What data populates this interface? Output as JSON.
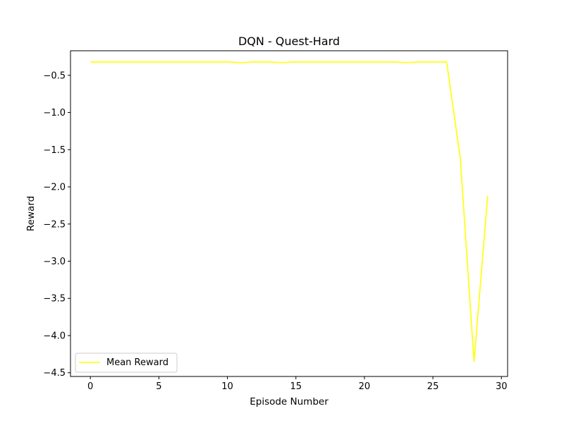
{
  "chart_data": {
    "type": "line",
    "title": "DQN - Quest-Hard",
    "xlabel": "Episode Number",
    "ylabel": "Reward",
    "xlim": [
      -1.45,
      30.45
    ],
    "ylim": [
      -4.55,
      -0.17
    ],
    "xticks": [
      0,
      5,
      10,
      15,
      20,
      25,
      30
    ],
    "yticks": [
      -0.5,
      -1.0,
      -1.5,
      -2.0,
      -2.5,
      -3.0,
      -3.5,
      -4.0,
      -4.5
    ],
    "xtick_labels": [
      "0",
      "5",
      "10",
      "15",
      "20",
      "25",
      "30"
    ],
    "ytick_labels": [
      "−0.5",
      "−1.0",
      "−1.5",
      "−2.0",
      "−2.5",
      "−3.0",
      "−3.5",
      "−4.0",
      "−4.5"
    ],
    "grid": false,
    "legend_position": "lower-left",
    "series": [
      {
        "name": "Mean Reward",
        "color": "#ffff00",
        "x": [
          0,
          1,
          2,
          3,
          4,
          5,
          6,
          7,
          8,
          9,
          10,
          11,
          12,
          13,
          14,
          15,
          16,
          17,
          18,
          19,
          20,
          21,
          22,
          23,
          24,
          25,
          26,
          27,
          28,
          29
        ],
        "values": [
          -0.32,
          -0.32,
          -0.32,
          -0.32,
          -0.32,
          -0.32,
          -0.32,
          -0.32,
          -0.32,
          -0.32,
          -0.32,
          -0.33,
          -0.32,
          -0.32,
          -0.33,
          -0.32,
          -0.32,
          -0.32,
          -0.32,
          -0.32,
          -0.32,
          -0.32,
          -0.32,
          -0.33,
          -0.32,
          -0.32,
          -0.32,
          -1.62,
          -4.35,
          -2.12
        ]
      }
    ]
  }
}
